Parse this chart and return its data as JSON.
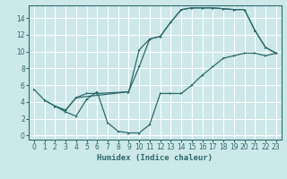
{
  "xlabel": "Humidex (Indice chaleur)",
  "bg_color": "#cce8e8",
  "grid_color": "#ffffff",
  "line_color": "#2e6b6b",
  "xlim": [
    -0.5,
    23.5
  ],
  "ylim": [
    -0.5,
    15.5
  ],
  "xticks": [
    0,
    1,
    2,
    3,
    4,
    5,
    6,
    7,
    8,
    9,
    10,
    11,
    12,
    13,
    14,
    15,
    16,
    17,
    18,
    19,
    20,
    21,
    22,
    23
  ],
  "yticks": [
    0,
    2,
    4,
    6,
    8,
    10,
    12,
    14
  ],
  "line1": {
    "x": [
      0,
      1,
      2,
      3,
      4,
      9,
      10,
      11,
      12,
      13,
      14,
      15,
      16,
      17,
      18,
      19,
      20,
      21,
      22,
      23
    ],
    "y": [
      5.5,
      4.2,
      3.5,
      3.0,
      4.5,
      5.2,
      8.2,
      11.5,
      11.8,
      13.5,
      15.0,
      15.2,
      15.2,
      15.2,
      15.1,
      15.0,
      15.0,
      12.5,
      10.5,
      9.8
    ]
  },
  "line2": {
    "x": [
      1,
      2,
      3,
      4,
      5,
      6,
      9,
      10,
      11,
      12,
      13,
      14,
      15,
      16,
      17,
      18,
      19,
      20,
      21,
      22,
      23
    ],
    "y": [
      4.2,
      3.5,
      3.0,
      4.5,
      5.0,
      5.0,
      5.2,
      10.2,
      11.5,
      11.8,
      13.5,
      15.0,
      15.2,
      15.2,
      15.2,
      15.1,
      15.0,
      15.0,
      12.5,
      10.5,
      9.8
    ]
  },
  "line3": {
    "x": [
      2,
      3,
      4,
      5,
      6,
      7,
      8,
      9,
      10,
      11,
      12,
      13,
      14,
      15,
      16,
      17,
      18,
      19,
      20,
      21,
      22,
      23
    ],
    "y": [
      3.5,
      2.8,
      2.3,
      4.3,
      5.2,
      1.5,
      0.5,
      0.3,
      0.3,
      1.3,
      5.0,
      5.0,
      5.0,
      6.0,
      7.2,
      8.2,
      9.2,
      9.5,
      9.8,
      9.8,
      9.5,
      9.8
    ]
  }
}
